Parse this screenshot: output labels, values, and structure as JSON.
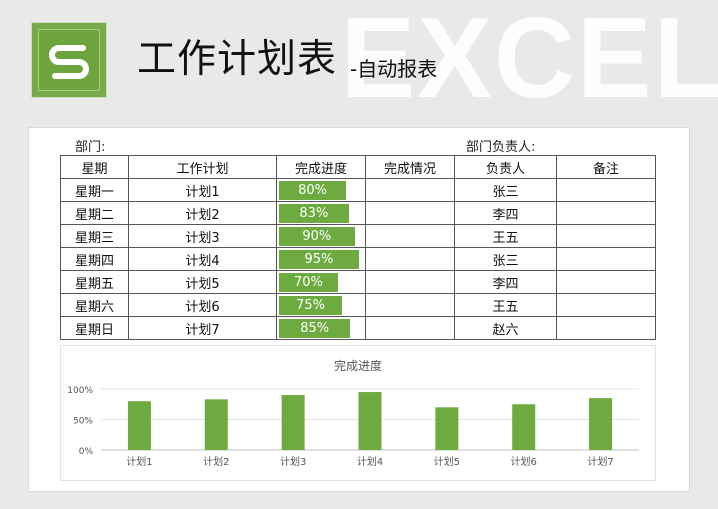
{
  "header": {
    "title": "工作计划表",
    "subtitle": "-自动报表",
    "watermark": "EXCEL",
    "logo_letter": "S",
    "accent_color": "#6dab40"
  },
  "sheet": {
    "department_label": "部门:",
    "manager_label": "部门负责人:",
    "columns": [
      "星期",
      "工作计划",
      "完成进度",
      "完成情况",
      "负责人",
      "备注"
    ],
    "rows": [
      {
        "day": "星期一",
        "plan": "计划1",
        "progress": 80,
        "progress_text": "80%",
        "status": "",
        "owner": "张三",
        "note": ""
      },
      {
        "day": "星期二",
        "plan": "计划2",
        "progress": 83,
        "progress_text": "83%",
        "status": "",
        "owner": "李四",
        "note": ""
      },
      {
        "day": "星期三",
        "plan": "计划3",
        "progress": 90,
        "progress_text": "90%",
        "status": "",
        "owner": "王五",
        "note": ""
      },
      {
        "day": "星期四",
        "plan": "计划4",
        "progress": 95,
        "progress_text": "95%",
        "status": "",
        "owner": "张三",
        "note": ""
      },
      {
        "day": "星期五",
        "plan": "计划5",
        "progress": 70,
        "progress_text": "70%",
        "status": "",
        "owner": "李四",
        "note": ""
      },
      {
        "day": "星期六",
        "plan": "计划6",
        "progress": 75,
        "progress_text": "75%",
        "status": "",
        "owner": "王五",
        "note": ""
      },
      {
        "day": "星期日",
        "plan": "计划7",
        "progress": 85,
        "progress_text": "85%",
        "status": "",
        "owner": "赵六",
        "note": ""
      }
    ]
  },
  "chart_data": {
    "type": "bar",
    "title": "完成进度",
    "categories": [
      "计划1",
      "计划2",
      "计划3",
      "计划4",
      "计划5",
      "计划6",
      "计划7"
    ],
    "values": [
      0.8,
      0.83,
      0.9,
      0.95,
      0.7,
      0.75,
      0.85
    ],
    "ylim": [
      0,
      1
    ],
    "yticks": [
      "0%",
      "50%",
      "100%"
    ],
    "grid": true,
    "color": "#6dab40"
  }
}
